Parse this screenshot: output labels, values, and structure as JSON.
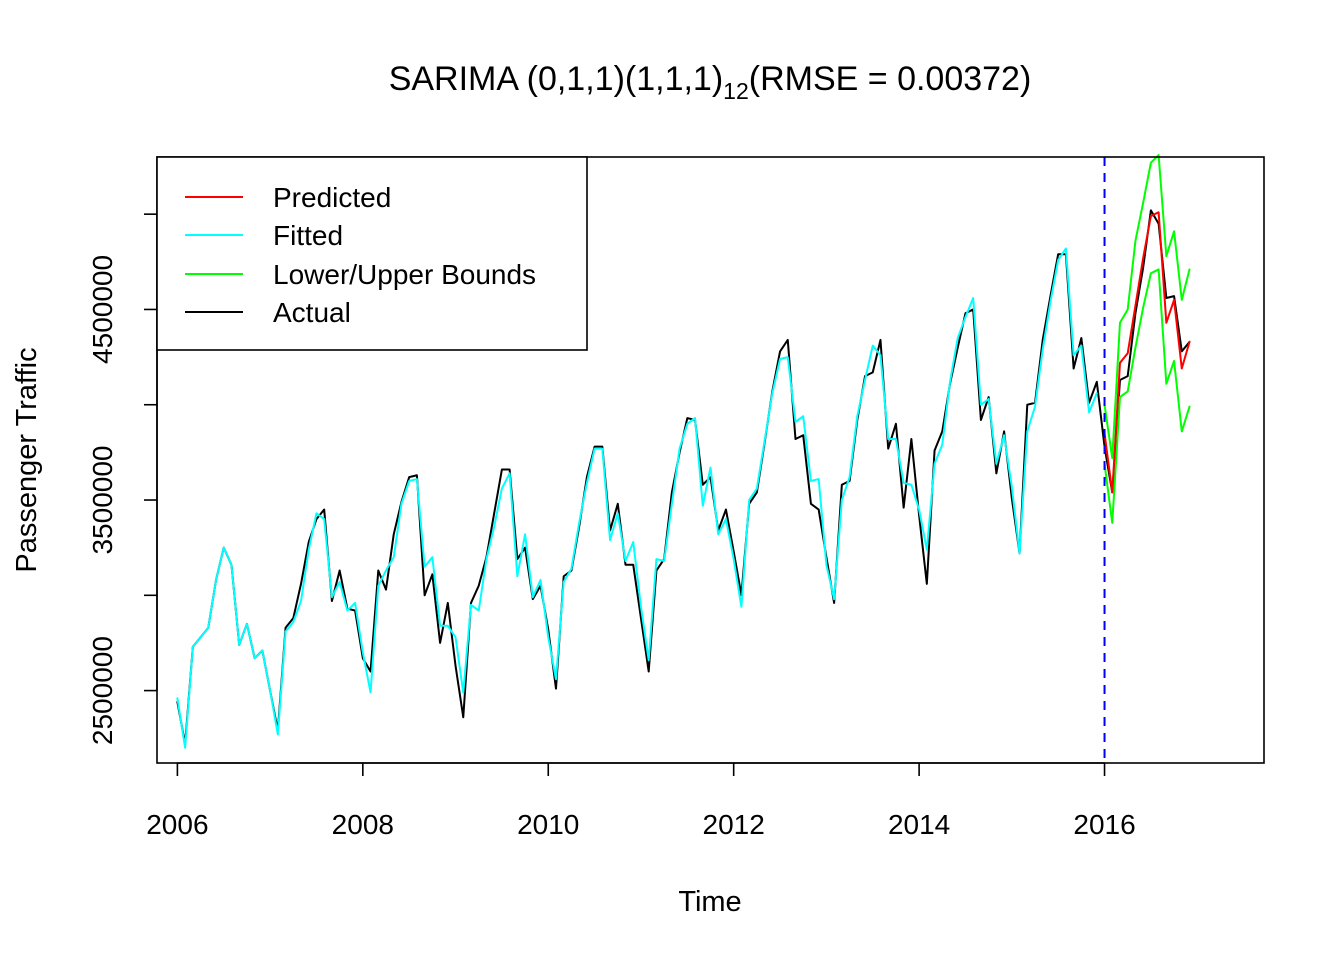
{
  "chart_data": {
    "type": "line",
    "title": {
      "prefix": "SARIMA (0,1,1)(1,1,1)",
      "subscript": "12",
      "suffix": "(RMSE = 0.00372)"
    },
    "xlabel": "Time",
    "ylabel": "Passenger Traffic",
    "xlim": [
      2005.78,
      2017.72
    ],
    "ylim": [
      2120000,
      5300000
    ],
    "x_ticks": [
      2006,
      2008,
      2010,
      2012,
      2014,
      2016
    ],
    "x_tick_labels": [
      "2006",
      "2008",
      "2010",
      "2012",
      "2014",
      "2016"
    ],
    "y_ticks": [
      2500000,
      3000000,
      3500000,
      4000000,
      4500000,
      5000000
    ],
    "y_tick_labels": [
      "2500000",
      "",
      "3500000",
      "",
      "4500000",
      ""
    ],
    "vline_x": 2016,
    "grid": false,
    "legend_position": "top-left",
    "legend": [
      {
        "label": "Predicted",
        "color": "#ff0000"
      },
      {
        "label": "Fitted",
        "color": "#00ffff"
      },
      {
        "label": "Lower/Upper Bounds",
        "color": "#00ff00"
      },
      {
        "label": "Actual",
        "color": "#000000"
      }
    ],
    "colors": {
      "predicted": "#ff0000",
      "fitted": "#00ffff",
      "bounds": "#00ff00",
      "actual": "#000000",
      "vline": "#0000ff"
    },
    "monthly_start": 2006,
    "actual": [
      2440000,
      2220000,
      2730000,
      2780000,
      2830000,
      3080000,
      3250000,
      3160000,
      2740000,
      2850000,
      2670000,
      2710000,
      2500000,
      2290000,
      2830000,
      2880000,
      3060000,
      3280000,
      3400000,
      3450000,
      2970000,
      3130000,
      2930000,
      2920000,
      2670000,
      2600000,
      3130000,
      3030000,
      3320000,
      3490000,
      3620000,
      3630000,
      3000000,
      3110000,
      2750000,
      2960000,
      2630000,
      2360000,
      2960000,
      3050000,
      3200000,
      3430000,
      3660000,
      3660000,
      3190000,
      3250000,
      2980000,
      3050000,
      2820000,
      2510000,
      3100000,
      3130000,
      3360000,
      3620000,
      3780000,
      3780000,
      3340000,
      3480000,
      3160000,
      3160000,
      2880000,
      2600000,
      3130000,
      3190000,
      3540000,
      3750000,
      3930000,
      3920000,
      3580000,
      3620000,
      3340000,
      3450000,
      3230000,
      3000000,
      3480000,
      3540000,
      3800000,
      4070000,
      4280000,
      4340000,
      3820000,
      3840000,
      3480000,
      3450000,
      3200000,
      2960000,
      3580000,
      3600000,
      3920000,
      4150000,
      4170000,
      4340000,
      3770000,
      3900000,
      3460000,
      3820000,
      3420000,
      3060000,
      3760000,
      3860000,
      4110000,
      4300000,
      4480000,
      4500000,
      3920000,
      4040000,
      3640000,
      3860000,
      3510000,
      3220000,
      4000000,
      4010000,
      4340000,
      4570000,
      4790000,
      4790000,
      4190000,
      4350000,
      4010000,
      4120000,
      3780000,
      3540000,
      4130000,
      4150000,
      4480000,
      4720000,
      5020000,
      4950000,
      4560000,
      4570000,
      4280000,
      4330000
    ],
    "fitted_until": "2015-12",
    "fitted": [
      2460000,
      2200000,
      2730000,
      2780000,
      2830000,
      3080000,
      3250000,
      3160000,
      2740000,
      2850000,
      2670000,
      2710000,
      2500000,
      2270000,
      2810000,
      2860000,
      2970000,
      3240000,
      3430000,
      3400000,
      2990000,
      3070000,
      2920000,
      2960000,
      2700000,
      2490000,
      3050000,
      3130000,
      3200000,
      3480000,
      3600000,
      3610000,
      3150000,
      3200000,
      2840000,
      2840000,
      2780000,
      2490000,
      2950000,
      2920000,
      3190000,
      3360000,
      3560000,
      3640000,
      3100000,
      3320000,
      2990000,
      3080000,
      2780000,
      2560000,
      3070000,
      3140000,
      3380000,
      3590000,
      3770000,
      3770000,
      3290000,
      3430000,
      3180000,
      3280000,
      2940000,
      2660000,
      3190000,
      3180000,
      3480000,
      3770000,
      3900000,
      3930000,
      3470000,
      3670000,
      3320000,
      3400000,
      3190000,
      2940000,
      3500000,
      3560000,
      3810000,
      4060000,
      4240000,
      4250000,
      3910000,
      3940000,
      3600000,
      3610000,
      3160000,
      2980000,
      3500000,
      3620000,
      3940000,
      4130000,
      4310000,
      4260000,
      3820000,
      3820000,
      3590000,
      3580000,
      3450000,
      3240000,
      3690000,
      3790000,
      4120000,
      4350000,
      4460000,
      4560000,
      4000000,
      4030000,
      3690000,
      3840000,
      3570000,
      3220000,
      3860000,
      3990000,
      4290000,
      4540000,
      4760000,
      4820000,
      4260000,
      4310000,
      3960000,
      4060000
    ],
    "forecast_start": 2016,
    "predicted": [
      3850000,
      3540000,
      4220000,
      4270000,
      4520000,
      4770000,
      4990000,
      5010000,
      4430000,
      4550000,
      4190000,
      4330000
    ],
    "lower": [
      3690000,
      3380000,
      4040000,
      4070000,
      4300000,
      4510000,
      4690000,
      4710000,
      4110000,
      4230000,
      3860000,
      3990000
    ],
    "upper": [
      4000000,
      3720000,
      4430000,
      4500000,
      4860000,
      5060000,
      5270000,
      5310000,
      4780000,
      4910000,
      4550000,
      4710000
    ]
  }
}
